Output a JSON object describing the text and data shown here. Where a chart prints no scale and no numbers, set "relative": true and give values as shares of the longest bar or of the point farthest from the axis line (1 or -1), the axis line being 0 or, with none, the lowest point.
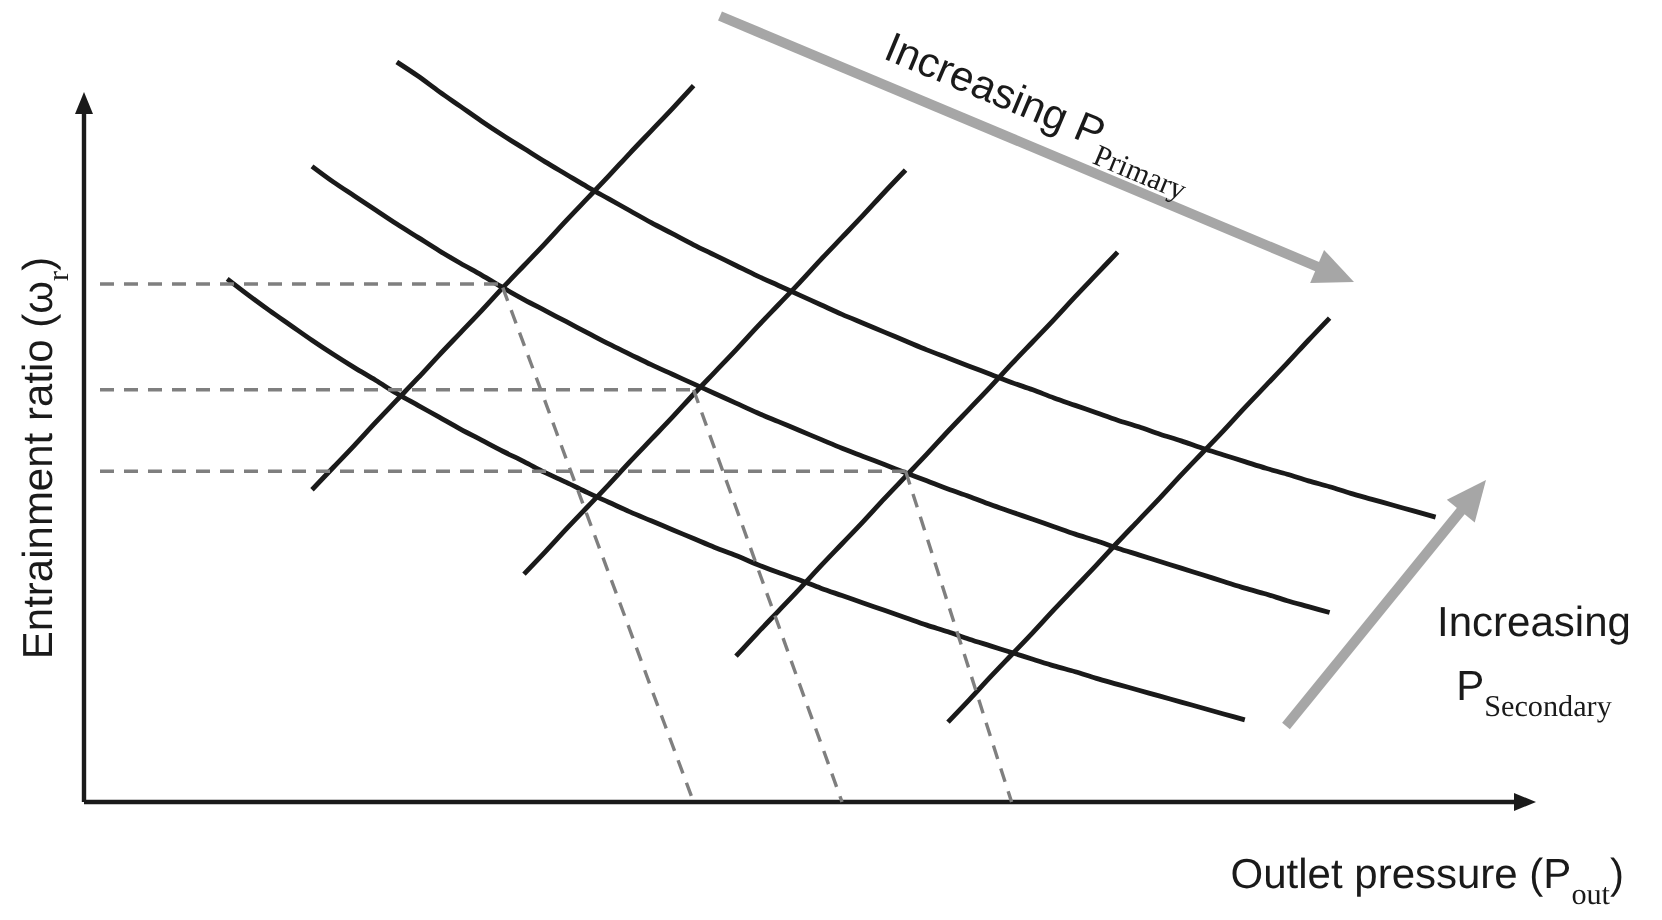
{
  "chart_data": {
    "type": "line",
    "relative": true,
    "line_style": "solid",
    "xlabel": "Outlet pressure (P$_{out}$)",
    "ylabel": "Entrainment ratio (ω$_{r}$)",
    "annotations": [
      "Increasing P$_{Primary}$",
      "Increasing P$_{Secondary}$"
    ],
    "categories": [
      null,
      null,
      null,
      null,
      null,
      null,
      null,
      null,
      null,
      null,
      null,
      null,
      null,
      null,
      null,
      null,
      null,
      null,
      null,
      null,
      null,
      null,
      null,
      null,
      null,
      null,
      null,
      null,
      null,
      null,
      null,
      null,
      null,
      null,
      null,
      null,
      null,
      null,
      null,
      null,
      null,
      null,
      null,
      null,
      null,
      null,
      null,
      null,
      null,
      null,
      null,
      null,
      null,
      null,
      null,
      null,
      null,
      null,
      null,
      null,
      null,
      null,
      null,
      null,
      null,
      null,
      null,
      null
    ],
    "series": [
      {
        "color": "#1a1a1a",
        "values": [
          null,
          null,
          null,
          null,
          null,
          null,
          null,
          null,
          null,
          null,
          null,
          null,
          null,
          null,
          1.0,
          0.981,
          0.96,
          0.94,
          0.92,
          0.901,
          0.883,
          0.865,
          0.848,
          0.831,
          0.815,
          0.799,
          0.783,
          0.768,
          0.753,
          0.739,
          0.725,
          0.711,
          0.698,
          0.685,
          0.672,
          0.659,
          0.647,
          0.635,
          0.623,
          0.611,
          0.6,
          0.589,
          0.578,
          0.567,
          0.557,
          0.546,
          0.536,
          0.526,
          0.516,
          0.507,
          0.497,
          0.488,
          0.478,
          0.469,
          0.46,
          0.451,
          0.443,
          0.434,
          0.426,
          0.417,
          0.409,
          0.401,
          0.393,
          0.385,
          null,
          null,
          null,
          null
        ]
      },
      {
        "color": "#1a1a1a",
        "values": [
          null,
          null,
          null,
          null,
          null,
          null,
          null,
          null,
          null,
          null,
          0.859,
          0.838,
          0.819,
          0.8,
          0.781,
          0.763,
          0.745,
          0.728,
          0.712,
          0.695,
          0.679,
          0.664,
          0.649,
          0.634,
          0.619,
          0.605,
          0.591,
          0.578,
          0.565,
          0.552,
          0.539,
          0.526,
          0.514,
          0.502,
          0.49,
          0.478,
          0.467,
          0.456,
          0.445,
          0.434,
          0.423,
          0.413,
          0.402,
          0.392,
          0.382,
          0.372,
          0.362,
          0.353,
          0.343,
          0.334,
          0.325,
          0.316,
          0.307,
          0.298,
          0.289,
          0.281,
          0.272,
          0.264,
          0.256,
          null,
          null,
          null,
          null,
          null,
          null,
          null,
          null,
          null
        ]
      },
      {
        "color": "#1a1a1a",
        "values": [
          null,
          null,
          null,
          null,
          null,
          null,
          0.707,
          0.685,
          0.664,
          0.644,
          0.624,
          0.605,
          0.587,
          0.57,
          0.552,
          0.536,
          0.52,
          0.504,
          0.489,
          0.474,
          0.46,
          0.445,
          0.432,
          0.418,
          0.405,
          0.392,
          0.38,
          0.368,
          0.356,
          0.344,
          0.333,
          0.321,
          0.31,
          0.3,
          0.289,
          0.279,
          0.269,
          0.259,
          0.249,
          0.239,
          0.23,
          0.22,
          0.211,
          0.202,
          0.193,
          0.184,
          0.176,
          0.167,
          0.159,
          0.151,
          0.143,
          0.135,
          0.127,
          0.119,
          0.111,
          null,
          null,
          null,
          null,
          null,
          null,
          null,
          null,
          null,
          null,
          null,
          null,
          null
        ]
      },
      {
        "color": "#1a1a1a",
        "values": [
          null,
          null,
          null,
          null,
          null,
          null,
          null,
          null,
          null,
          null,
          0.422,
          0.452,
          0.482,
          0.513,
          0.543,
          0.573,
          0.604,
          0.634,
          0.664,
          0.695,
          0.725,
          0.755,
          0.786,
          0.816,
          0.846,
          0.877,
          0.907,
          0.937,
          0.968,
          null,
          null,
          null,
          null,
          null,
          null,
          null,
          null,
          null,
          null,
          null,
          null,
          null,
          null,
          null,
          null,
          null,
          null,
          null,
          null,
          null,
          null,
          null,
          null,
          null,
          null,
          null,
          null,
          null,
          null,
          null,
          null,
          null,
          null,
          null,
          null,
          null,
          null,
          null
        ]
      },
      {
        "color": "#1a1a1a",
        "values": [
          null,
          null,
          null,
          null,
          null,
          null,
          null,
          null,
          null,
          null,
          null,
          null,
          null,
          null,
          null,
          null,
          null,
          null,
          null,
          null,
          0.308,
          0.338,
          0.369,
          0.399,
          0.429,
          0.46,
          0.49,
          0.52,
          0.551,
          0.581,
          0.611,
          0.642,
          0.672,
          0.702,
          0.733,
          0.763,
          0.793,
          0.824,
          0.854,
          null,
          null,
          null,
          null,
          null,
          null,
          null,
          null,
          null,
          null,
          null,
          null,
          null,
          null,
          null,
          null,
          null,
          null,
          null,
          null,
          null,
          null,
          null,
          null,
          null,
          null,
          null,
          null,
          null
        ]
      },
      {
        "color": "#1a1a1a",
        "values": [
          null,
          null,
          null,
          null,
          null,
          null,
          null,
          null,
          null,
          null,
          null,
          null,
          null,
          null,
          null,
          null,
          null,
          null,
          null,
          null,
          null,
          null,
          null,
          null,
          null,
          null,
          null,
          null,
          null,
          null,
          0.197,
          0.228,
          0.258,
          0.288,
          0.319,
          0.349,
          0.379,
          0.41,
          0.44,
          0.47,
          0.501,
          0.531,
          0.561,
          0.592,
          0.622,
          0.652,
          0.683,
          0.713,
          0.743,
          null,
          null,
          null,
          null,
          null,
          null,
          null,
          null,
          null,
          null,
          null,
          null,
          null,
          null,
          null,
          null,
          null,
          null,
          null
        ]
      },
      {
        "color": "#1a1a1a",
        "values": [
          null,
          null,
          null,
          null,
          null,
          null,
          null,
          null,
          null,
          null,
          null,
          null,
          null,
          null,
          null,
          null,
          null,
          null,
          null,
          null,
          null,
          null,
          null,
          null,
          null,
          null,
          null,
          null,
          null,
          null,
          null,
          null,
          null,
          null,
          null,
          null,
          null,
          null,
          null,
          null,
          0.108,
          0.138,
          0.169,
          0.199,
          0.229,
          0.26,
          0.29,
          0.32,
          0.351,
          0.381,
          0.411,
          0.442,
          0.472,
          0.502,
          0.533,
          0.563,
          0.593,
          0.624,
          0.654,
          null,
          null,
          null,
          null,
          null,
          null,
          null,
          null,
          null
        ]
      },
      {
        "color": "#7f7f7f",
        "line_style": "dashed",
        "values": [
          0.7,
          0.7,
          0.7,
          0.7,
          0.7,
          0.7,
          0.7,
          0.7,
          0.7,
          0.7,
          0.7,
          0.7,
          0.7,
          0.7,
          0.7,
          0.7,
          0.7,
          0.7,
          0.7,
          0.7,
          null,
          null,
          null,
          null,
          null,
          null,
          null,
          null,
          null,
          null,
          null,
          null,
          null,
          null,
          null,
          null,
          null,
          null,
          null,
          null,
          null,
          null,
          null,
          null,
          null,
          null,
          null,
          null,
          null,
          null,
          null,
          null,
          null,
          null,
          null,
          null,
          null,
          null,
          null,
          null,
          null,
          null,
          null,
          null,
          null,
          null,
          null,
          null
        ]
      },
      {
        "color": "#7f7f7f",
        "line_style": "dashed",
        "values": [
          0.557,
          0.557,
          0.557,
          0.557,
          0.557,
          0.557,
          0.557,
          0.557,
          0.557,
          0.557,
          0.557,
          0.557,
          0.557,
          0.557,
          0.557,
          0.557,
          0.557,
          0.557,
          0.557,
          0.557,
          0.557,
          0.557,
          0.557,
          0.557,
          0.557,
          0.557,
          0.557,
          0.557,
          0.557,
          null,
          null,
          null,
          null,
          null,
          null,
          null,
          null,
          null,
          null,
          null,
          null,
          null,
          null,
          null,
          null,
          null,
          null,
          null,
          null,
          null,
          null,
          null,
          null,
          null,
          null,
          null,
          null,
          null,
          null,
          null,
          null,
          null,
          null,
          null,
          null,
          null,
          null,
          null
        ]
      },
      {
        "color": "#7f7f7f",
        "line_style": "dashed",
        "values": [
          0.447,
          0.447,
          0.447,
          0.447,
          0.447,
          0.447,
          0.447,
          0.447,
          0.447,
          0.447,
          0.447,
          0.447,
          0.447,
          0.447,
          0.447,
          0.447,
          0.447,
          0.447,
          0.447,
          0.447,
          0.447,
          0.447,
          0.447,
          0.447,
          0.447,
          0.447,
          0.447,
          0.447,
          0.447,
          0.447,
          0.447,
          0.447,
          0.447,
          0.447,
          0.447,
          0.447,
          0.447,
          0.447,
          0.447,
          null,
          null,
          null,
          null,
          null,
          null,
          null,
          null,
          null,
          null,
          null,
          null,
          null,
          null,
          null,
          null,
          null,
          null,
          null,
          null,
          null,
          null,
          null,
          null,
          null,
          null,
          null,
          null,
          null
        ]
      },
      {
        "color": "#7f7f7f",
        "line_style": "dashed",
        "values": [
          null,
          null,
          null,
          null,
          null,
          null,
          null,
          null,
          null,
          null,
          null,
          null,
          null,
          null,
          null,
          null,
          null,
          null,
          null,
          0.695,
          0.618,
          0.541,
          0.463,
          0.386,
          0.309,
          0.232,
          0.154,
          0.077,
          0,
          null,
          null,
          null,
          null,
          null,
          null,
          null,
          null,
          null,
          null,
          null,
          null,
          null,
          null,
          null,
          null,
          null,
          null,
          null,
          null,
          null,
          null,
          null,
          null,
          null,
          null,
          null,
          null,
          null,
          null,
          null,
          null,
          null,
          null,
          null,
          null,
          null,
          null,
          null
        ]
      },
      {
        "color": "#7f7f7f",
        "line_style": "dashed",
        "values": [
          null,
          null,
          null,
          null,
          null,
          null,
          null,
          null,
          null,
          null,
          null,
          null,
          null,
          null,
          null,
          null,
          null,
          null,
          null,
          null,
          null,
          null,
          null,
          null,
          null,
          null,
          null,
          null,
          0.557,
          0.477,
          0.398,
          0.318,
          0.239,
          0.159,
          0.08,
          0,
          null,
          null,
          null,
          null,
          null,
          null,
          null,
          null,
          null,
          null,
          null,
          null,
          null,
          null,
          null,
          null,
          null,
          null,
          null,
          null,
          null,
          null,
          null,
          null,
          null,
          null,
          null,
          null,
          null,
          null,
          null,
          null
        ]
      },
      {
        "color": "#7f7f7f",
        "line_style": "dashed",
        "values": [
          null,
          null,
          null,
          null,
          null,
          null,
          null,
          null,
          null,
          null,
          null,
          null,
          null,
          null,
          null,
          null,
          null,
          null,
          null,
          null,
          null,
          null,
          null,
          null,
          null,
          null,
          null,
          null,
          null,
          null,
          null,
          null,
          null,
          null,
          null,
          null,
          null,
          null,
          0.447,
          0.358,
          0.268,
          0.179,
          0.089,
          0,
          null,
          null,
          null,
          null,
          null,
          null,
          null,
          null,
          null,
          null,
          null,
          null,
          null,
          null,
          null,
          null,
          null,
          null,
          null,
          null,
          null,
          null,
          null,
          null
        ]
      }
    ]
  }
}
